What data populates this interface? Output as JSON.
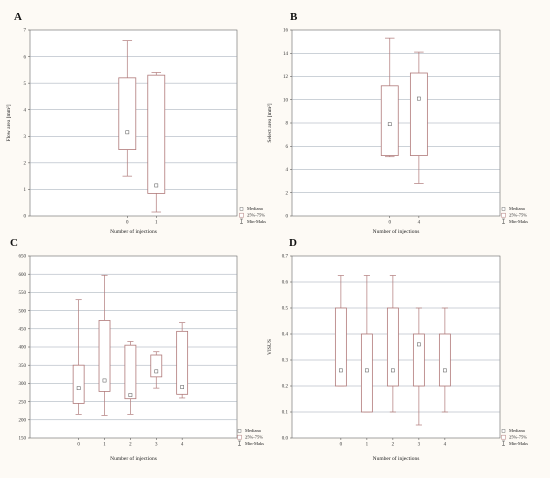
{
  "colors": {
    "box": "#b07a7a",
    "grid": "#9aa4b0",
    "plot_bg": "#ffffff",
    "page_bg": "#fdfaf5",
    "text": "#222222"
  },
  "chart_data": [
    {
      "panel": "A",
      "type": "box",
      "xlabel": "Number of injections",
      "ylabel": "Flow area [mm²]",
      "ylim": [
        0,
        7
      ],
      "yticks": [
        0,
        1,
        2,
        3,
        4,
        5,
        6,
        7
      ],
      "categories": [
        "0",
        "1"
      ],
      "boxes": [
        {
          "min": 1.5,
          "q1": 2.5,
          "median": 3.15,
          "q3": 5.2,
          "max": 6.6
        },
        {
          "min": 0.15,
          "q1": 0.85,
          "median": 1.15,
          "q3": 5.3,
          "max": 5.4
        }
      ],
      "legend": [
        "Mediana",
        "25%-75%",
        "Min-Maks"
      ],
      "grid": true
    },
    {
      "panel": "B",
      "type": "box",
      "xlabel": "Number of injections",
      "ylabel": "Select area [mm²]",
      "ylim": [
        0,
        16
      ],
      "yticks": [
        0,
        2,
        4,
        6,
        8,
        10,
        12,
        14,
        16
      ],
      "categories": [
        "0",
        "4"
      ],
      "boxes": [
        {
          "min": 5.1,
          "q1": 5.2,
          "median": 7.9,
          "q3": 11.2,
          "max": 15.3
        },
        {
          "min": 2.8,
          "q1": 5.2,
          "median": 10.1,
          "q3": 12.3,
          "max": 14.1
        }
      ],
      "legend": [
        "Mediana",
        "25%-75%",
        "Min-Maks"
      ],
      "grid": true
    },
    {
      "panel": "C",
      "type": "box",
      "xlabel": "Number of injections",
      "ylabel": "",
      "ylim": [
        150,
        650
      ],
      "yticks": [
        150,
        200,
        250,
        300,
        350,
        400,
        450,
        500,
        550,
        600,
        650
      ],
      "categories": [
        "0",
        "1",
        "2",
        "3",
        "4"
      ],
      "boxes": [
        {
          "min": 215,
          "q1": 245,
          "median": 287,
          "q3": 350,
          "max": 530
        },
        {
          "min": 212,
          "q1": 278,
          "median": 308,
          "q3": 473,
          "max": 597
        },
        {
          "min": 215,
          "q1": 258,
          "median": 268,
          "q3": 405,
          "max": 415
        },
        {
          "min": 287,
          "q1": 318,
          "median": 333,
          "q3": 378,
          "max": 387
        },
        {
          "min": 260,
          "q1": 270,
          "median": 290,
          "q3": 443,
          "max": 467
        }
      ],
      "legend": [
        "Mediana",
        "25%-75%",
        "Min-Maks"
      ],
      "grid": true
    },
    {
      "panel": "D",
      "type": "box",
      "xlabel": "Number of injections",
      "ylabel": "VISUS",
      "ylim": [
        0,
        0.7
      ],
      "yticks": [
        "0.0",
        "0.1",
        "0.2",
        "0.3",
        "0.4",
        "0.5",
        "0.6",
        "0.7"
      ],
      "categories": [
        "0",
        "1",
        "2",
        "3",
        "4"
      ],
      "boxes": [
        {
          "min": 0.2,
          "q1": 0.2,
          "median": 0.26,
          "q3": 0.5,
          "max": 0.625
        },
        {
          "min": 0.1,
          "q1": 0.1,
          "median": 0.26,
          "q3": 0.4,
          "max": 0.625
        },
        {
          "min": 0.1,
          "q1": 0.2,
          "median": 0.26,
          "q3": 0.5,
          "max": 0.625
        },
        {
          "min": 0.05,
          "q1": 0.2,
          "median": 0.36,
          "q3": 0.4,
          "max": 0.5
        },
        {
          "min": 0.1,
          "q1": 0.2,
          "median": 0.26,
          "q3": 0.4,
          "max": 0.5
        }
      ],
      "legend": [
        "Mediana",
        "25%-75%",
        "Min-Maks"
      ],
      "grid": true
    }
  ]
}
